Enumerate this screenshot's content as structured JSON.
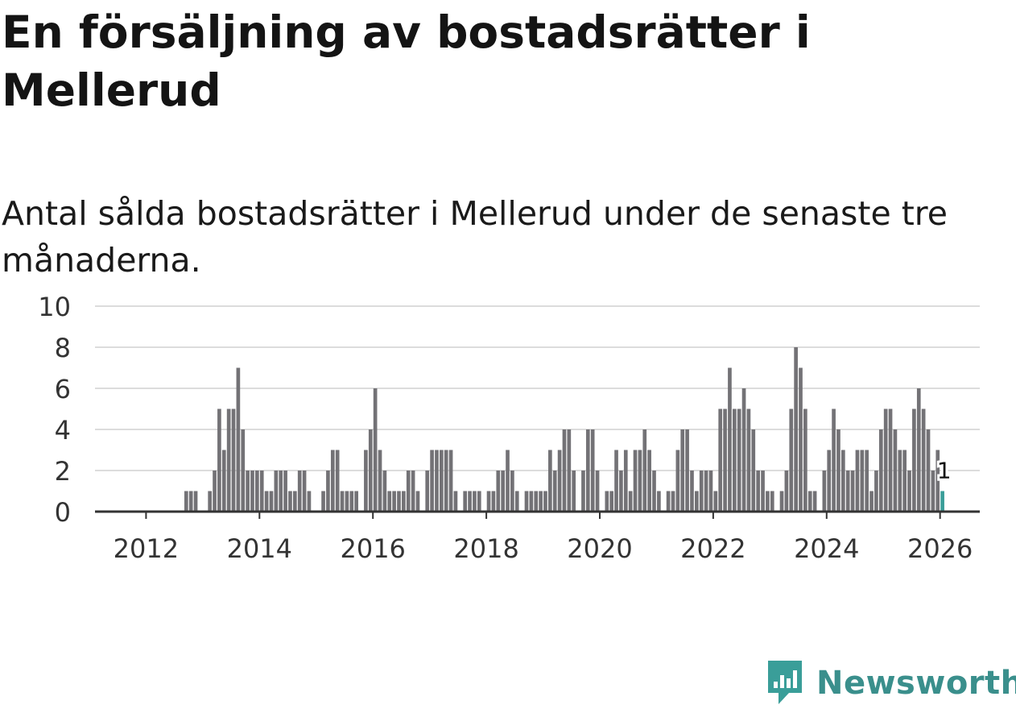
{
  "title": "En försäljning av bostadsrätter i Mellerud",
  "subtitle": "Antal sålda bostadsrätter i Mellerud under de senaste tre månaderna.",
  "brand": {
    "name": "Newsworthy",
    "color": "#3a9e99"
  },
  "chart_data": {
    "type": "bar",
    "ylim": [
      0,
      10
    ],
    "yticks": [
      0,
      2,
      4,
      6,
      8,
      10
    ],
    "xlim": [
      2011.1,
      2026.7
    ],
    "xticks": [
      2012,
      2014,
      2016,
      2018,
      2020,
      2022,
      2024,
      2026
    ],
    "xtick_labels": [
      "2012",
      "2014",
      "2016",
      "2018",
      "2020",
      "2022",
      "2024",
      "2026"
    ],
    "start": {
      "year": 2012,
      "month": 1
    },
    "bar_color": "#737276",
    "highlight_color": "#3a9e99",
    "highlight_label": "1",
    "values": [
      0,
      0,
      0,
      0,
      0,
      0,
      0,
      0,
      1,
      1,
      1,
      0,
      0,
      1,
      2,
      5,
      3,
      5,
      5,
      7,
      4,
      2,
      2,
      2,
      2,
      1,
      1,
      2,
      2,
      2,
      1,
      1,
      2,
      2,
      1,
      0,
      0,
      1,
      2,
      3,
      3,
      1,
      1,
      1,
      1,
      0,
      3,
      4,
      6,
      3,
      2,
      1,
      1,
      1,
      1,
      2,
      2,
      1,
      0,
      2,
      3,
      3,
      3,
      3,
      3,
      1,
      0,
      1,
      1,
      1,
      1,
      0,
      1,
      1,
      2,
      2,
      3,
      2,
      1,
      0,
      1,
      1,
      1,
      1,
      1,
      3,
      2,
      3,
      4,
      4,
      2,
      0,
      2,
      4,
      4,
      2,
      0,
      1,
      1,
      3,
      2,
      3,
      1,
      3,
      3,
      4,
      3,
      2,
      1,
      0,
      1,
      1,
      3,
      4,
      4,
      2,
      1,
      2,
      2,
      2,
      1,
      5,
      5,
      7,
      5,
      5,
      6,
      5,
      4,
      2,
      2,
      1,
      1,
      0,
      1,
      2,
      5,
      8,
      7,
      5,
      1,
      1,
      0,
      2,
      3,
      5,
      4,
      3,
      2,
      2,
      3,
      3,
      3,
      1,
      2,
      4,
      5,
      5,
      4,
      3,
      3,
      2,
      5,
      6,
      5,
      4,
      2,
      3,
      1
    ]
  }
}
